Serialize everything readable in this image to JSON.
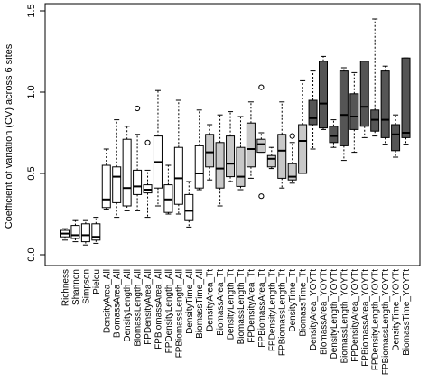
{
  "chart_data": {
    "type": "boxplot",
    "title": "",
    "xlabel": "",
    "ylabel": "Coefficient of variation (CV) across 6 sites",
    "ylim": [
      0,
      1.5
    ],
    "yticks": [
      0.0,
      0.5,
      1.0,
      1.5
    ],
    "ytick_labels": [
      "0.0",
      "0.5",
      "1.0",
      "1.5"
    ],
    "grid": false,
    "legend": "none",
    "group_colors": {
      "diversity": "#ffffff",
      "all": "#ffffff",
      "tt": "#c8c8c8",
      "yoyt": "#555555"
    },
    "categories": [
      "Richness",
      "Shannon",
      "Simpson",
      "Pielou",
      "DensityArea_All",
      "BiomassArea_All",
      "DensityLength_All",
      "BiomassLength_All",
      "FPDensityArea_All",
      "FPBiomassArea_All",
      "FPDensityLength_All",
      "FPBiomassLength_All",
      "DensityTime_All",
      "BiomassTime_All",
      "DensityArea_Tt",
      "BiomassArea_Tt",
      "DensityLength_Tt",
      "BiomassLength_Tt",
      "FPDensityArea_Tt",
      "FPBiomassArea_Tt",
      "FPDensityLength_Tt",
      "FPBiomassLength_Tt",
      "DensityTime_Tt",
      "BiomassTime_Tt",
      "DensityArea_YOYTt",
      "BiomassArea_YOYTt",
      "DensityLength_YOYTt",
      "BiomassLength_YOYTt",
      "FPDensityArea_YOYTt",
      "FPBiomassArea_YOYTt",
      "FPDensityLength_YOYTt",
      "FPBiomassLength_YOYTt",
      "DensityTime_YOYTt",
      "BiomassTime_YOYTt"
    ],
    "boxes": [
      {
        "name": "Richness",
        "group": "diversity",
        "min": 0.09,
        "q1": 0.11,
        "median": 0.13,
        "q3": 0.15,
        "max": 0.16,
        "outliers": []
      },
      {
        "name": "Shannon",
        "group": "diversity",
        "min": 0.08,
        "q1": 0.1,
        "median": 0.12,
        "q3": 0.18,
        "max": 0.21,
        "outliers": []
      },
      {
        "name": "Simpson",
        "group": "diversity",
        "min": 0.06,
        "q1": 0.08,
        "median": 0.12,
        "q3": 0.19,
        "max": 0.21,
        "outliers": []
      },
      {
        "name": "Pielou",
        "group": "diversity",
        "min": 0.07,
        "q1": 0.09,
        "median": 0.11,
        "q3": 0.19,
        "max": 0.23,
        "outliers": []
      },
      {
        "name": "DensityArea_All",
        "group": "all",
        "min": 0.28,
        "q1": 0.29,
        "median": 0.34,
        "q3": 0.55,
        "max": 0.65,
        "outliers": []
      },
      {
        "name": "BiomassArea_All",
        "group": "all",
        "min": 0.23,
        "q1": 0.32,
        "median": 0.48,
        "q3": 0.54,
        "max": 0.83,
        "outliers": []
      },
      {
        "name": "DensityLength_All",
        "group": "all",
        "min": 0.27,
        "q1": 0.3,
        "median": 0.41,
        "q3": 0.71,
        "max": 0.79,
        "outliers": []
      },
      {
        "name": "BiomassLength_All",
        "group": "all",
        "min": 0.27,
        "q1": 0.37,
        "median": 0.42,
        "q3": 0.52,
        "max": 0.74,
        "outliers": [
          0.9
        ]
      },
      {
        "name": "FPDensityArea_All",
        "group": "all",
        "min": 0.23,
        "q1": 0.38,
        "median": 0.4,
        "q3": 0.43,
        "max": 0.52,
        "outliers": [
          0.69
        ]
      },
      {
        "name": "FPBiomassArea_All",
        "group": "all",
        "min": 0.3,
        "q1": 0.41,
        "median": 0.57,
        "q3": 0.73,
        "max": 1.01,
        "outliers": []
      },
      {
        "name": "FPDensityLength_All",
        "group": "all",
        "min": 0.25,
        "q1": 0.26,
        "median": 0.34,
        "q3": 0.43,
        "max": 0.55,
        "outliers": []
      },
      {
        "name": "FPBiomassLength_All",
        "group": "all",
        "min": 0.25,
        "q1": 0.31,
        "median": 0.47,
        "q3": 0.66,
        "max": 0.95,
        "outliers": []
      },
      {
        "name": "DensityTime_All",
        "group": "all",
        "min": 0.17,
        "q1": 0.21,
        "median": 0.27,
        "q3": 0.37,
        "max": 0.45,
        "outliers": []
      },
      {
        "name": "BiomassTime_All",
        "group": "all",
        "min": 0.4,
        "q1": 0.41,
        "median": 0.5,
        "q3": 0.67,
        "max": 0.89,
        "outliers": []
      },
      {
        "name": "DensityArea_Tt",
        "group": "tt",
        "min": 0.46,
        "q1": 0.54,
        "median": 0.63,
        "q3": 0.74,
        "max": 0.8,
        "outliers": []
      },
      {
        "name": "BiomassArea_Tt",
        "group": "tt",
        "min": 0.3,
        "q1": 0.41,
        "median": 0.53,
        "q3": 0.69,
        "max": 0.86,
        "outliers": []
      },
      {
        "name": "DensityLength_Tt",
        "group": "tt",
        "min": 0.45,
        "q1": 0.48,
        "median": 0.56,
        "q3": 0.73,
        "max": 0.88,
        "outliers": []
      },
      {
        "name": "BiomassLength_Tt",
        "group": "tt",
        "min": 0.4,
        "q1": 0.42,
        "median": 0.48,
        "q3": 0.66,
        "max": 0.85,
        "outliers": []
      },
      {
        "name": "FPDensityArea_Tt",
        "group": "tt",
        "min": 0.47,
        "q1": 0.54,
        "median": 0.65,
        "q3": 0.81,
        "max": 0.94,
        "outliers": []
      },
      {
        "name": "FPBiomassArea_Tt",
        "group": "tt",
        "min": 0.63,
        "q1": 0.63,
        "median": 0.68,
        "q3": 0.71,
        "max": 0.75,
        "outliers": [
          1.03,
          0.36
        ]
      },
      {
        "name": "FPDensityLength_Tt",
        "group": "tt",
        "min": 0.53,
        "q1": 0.54,
        "median": 0.59,
        "q3": 0.61,
        "max": 0.66,
        "outliers": []
      },
      {
        "name": "FPBiomassLength_Tt",
        "group": "tt",
        "min": 0.41,
        "q1": 0.47,
        "median": 0.64,
        "q3": 0.74,
        "max": 0.94,
        "outliers": []
      },
      {
        "name": "DensityTime_Tt",
        "group": "tt",
        "min": 0.44,
        "q1": 0.46,
        "median": 0.48,
        "q3": 0.56,
        "max": 0.69,
        "outliers": [
          0.73
        ]
      },
      {
        "name": "BiomassTime_Tt",
        "group": "tt",
        "min": 0.5,
        "q1": 0.5,
        "median": 0.7,
        "q3": 0.8,
        "max": 1.07,
        "outliers": []
      },
      {
        "name": "DensityArea_YOYTt",
        "group": "yoyt",
        "min": 0.65,
        "q1": 0.8,
        "median": 0.84,
        "q3": 0.95,
        "max": 1.13,
        "outliers": []
      },
      {
        "name": "BiomassArea_YOYTt",
        "group": "yoyt",
        "min": 0.77,
        "q1": 0.78,
        "median": 0.93,
        "q3": 1.19,
        "max": 1.22,
        "outliers": []
      },
      {
        "name": "DensityLength_YOYTt",
        "group": "yoyt",
        "min": 0.66,
        "q1": 0.69,
        "median": 0.73,
        "q3": 0.79,
        "max": 0.83,
        "outliers": []
      },
      {
        "name": "BiomassLength_YOYTt",
        "group": "yoyt",
        "min": 0.58,
        "q1": 0.67,
        "median": 0.86,
        "q3": 1.13,
        "max": 1.15,
        "outliers": []
      },
      {
        "name": "FPDensityArea_YOYTt",
        "group": "yoyt",
        "min": 0.63,
        "q1": 0.77,
        "median": 0.85,
        "q3": 0.99,
        "max": 1.12,
        "outliers": []
      },
      {
        "name": "FPBiomassArea_YOYTt",
        "group": "yoyt",
        "min": 0.72,
        "q1": 0.79,
        "median": 0.91,
        "q3": 1.19,
        "max": 1.19,
        "outliers": []
      },
      {
        "name": "FPDensityLength_YOYTt",
        "group": "yoyt",
        "min": 0.73,
        "q1": 0.76,
        "median": 0.83,
        "q3": 0.89,
        "max": 1.45,
        "outliers": []
      },
      {
        "name": "FPBiomassLength_YOYTt",
        "group": "yoyt",
        "min": 0.68,
        "q1": 0.72,
        "median": 0.83,
        "q3": 1.13,
        "max": 1.16,
        "outliers": []
      },
      {
        "name": "DensityTime_YOYTt",
        "group": "yoyt",
        "min": 0.6,
        "q1": 0.64,
        "median": 0.74,
        "q3": 0.8,
        "max": 0.86,
        "outliers": []
      },
      {
        "name": "BiomassTime_YOYTt",
        "group": "yoyt",
        "min": 0.68,
        "q1": 0.72,
        "median": 0.75,
        "q3": 1.21,
        "max": 1.21,
        "outliers": []
      }
    ]
  }
}
